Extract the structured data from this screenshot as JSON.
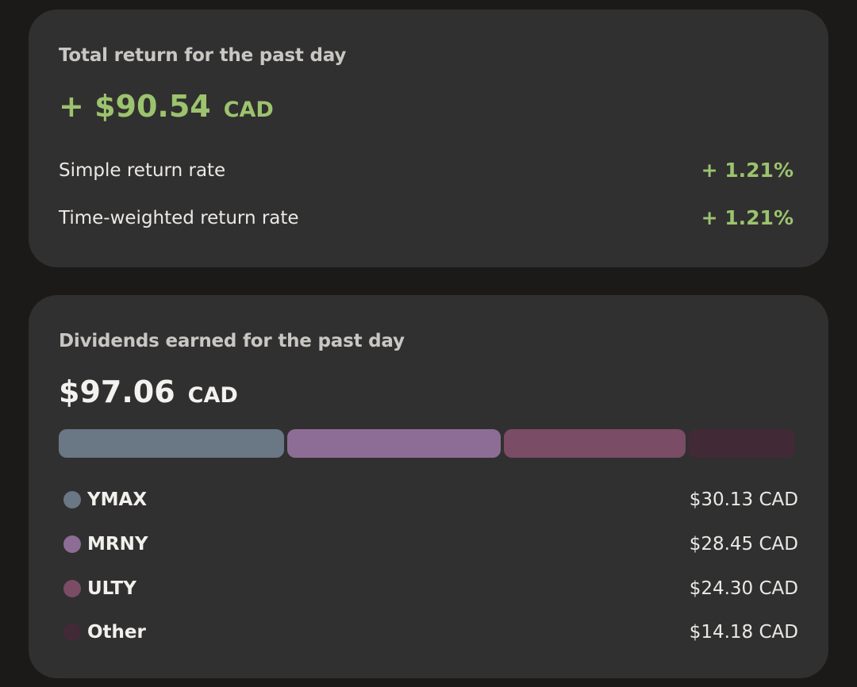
{
  "returns": {
    "title": "Total return for the past day",
    "amount": "+ $90.54",
    "currency": "CAD",
    "rows": [
      {
        "label": "Simple return rate",
        "value": "+ 1.21%"
      },
      {
        "label": "Time-weighted return rate",
        "value": "+ 1.21%"
      }
    ]
  },
  "dividends": {
    "title": "Dividends earned for the past day",
    "amount": "$97.06",
    "currency": "CAD",
    "items": [
      {
        "name": "YMAX",
        "value": "$30.13 CAD",
        "amount": 30.13,
        "color": "#6a7785"
      },
      {
        "name": "MRNY",
        "value": "$28.45 CAD",
        "amount": 28.45,
        "color": "#8d6d96"
      },
      {
        "name": "ULTY",
        "value": "$24.30 CAD",
        "amount": 24.3,
        "color": "#7a4c66"
      },
      {
        "name": "Other",
        "value": "$14.18 CAD",
        "amount": 14.18,
        "color": "#412a36"
      }
    ]
  }
}
